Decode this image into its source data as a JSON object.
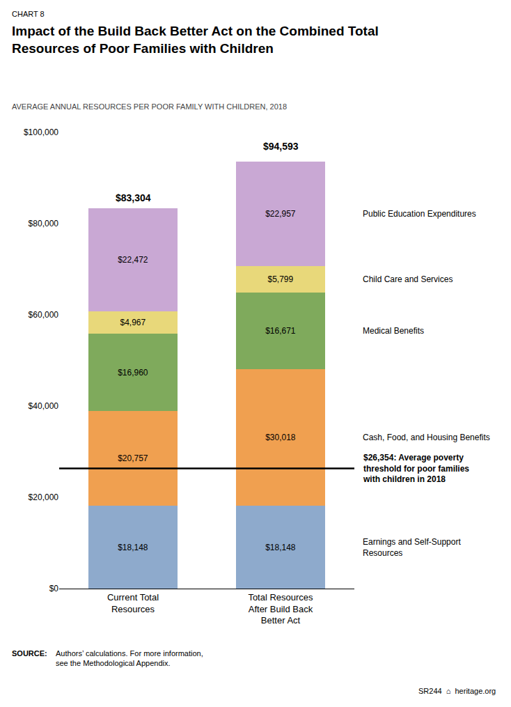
{
  "chart_data": {
    "type": "bar",
    "stacked": true,
    "data_labels": true,
    "grid": false,
    "chart_label": "CHART 8",
    "title": "Impact of the Build Back Better Act on the Combined Total\nResources of Poor Families with Children",
    "subtitle": "AVERAGE ANNUAL RESOURCES PER POOR FAMILY WITH CHILDREN, 2018",
    "categories": [
      "Current Total\nResources",
      "Total Resources\nAfter Build Back\nBetter Act"
    ],
    "series": [
      {
        "name": "Earnings and Self-Support\nResources",
        "color": "#8eaacc",
        "values": [
          18148,
          18148
        ],
        "value_labels": [
          "$18,148",
          "$18,148"
        ]
      },
      {
        "name": "Cash, Food, and Housing Benefits",
        "color": "#f0a050",
        "values": [
          20757,
          30018
        ],
        "value_labels": [
          "$20,757",
          "$30,018"
        ]
      },
      {
        "name": "Medical Benefits",
        "color": "#7faa5c",
        "values": [
          16960,
          16671
        ],
        "value_labels": [
          "$16,960",
          "$16,671"
        ]
      },
      {
        "name": "Child Care and Services",
        "color": "#e8d87a",
        "values": [
          4967,
          5799
        ],
        "value_labels": [
          "$4,967",
          "$5,799"
        ]
      },
      {
        "name": "Public Education Expenditures",
        "color": "#c9a8d4",
        "values": [
          22472,
          22957
        ],
        "value_labels": [
          "$22,472",
          "$22,957"
        ]
      }
    ],
    "totals": [
      83304,
      94593
    ],
    "total_labels": [
      "$83,304",
      "$94,593"
    ],
    "poverty_line": 26354,
    "poverty_label": "$26,354: Average poverty\nthreshold for poor families\nwith children in 2018",
    "ylim": [
      0,
      100000
    ],
    "yticks": [
      {
        "value": 0,
        "label": "$0"
      },
      {
        "value": 20000,
        "label": "$20,000"
      },
      {
        "value": 40000,
        "label": "$40,000"
      },
      {
        "value": 60000,
        "label": "$60,000"
      },
      {
        "value": 80000,
        "label": "$80,000"
      },
      {
        "value": 100000,
        "label": "$100,000"
      }
    ],
    "source_label": "SOURCE:",
    "source": "Authors’ calculations. For more information,\nsee the Methodological Appendix.",
    "footer": "SR244  ⌂  heritage.org"
  }
}
